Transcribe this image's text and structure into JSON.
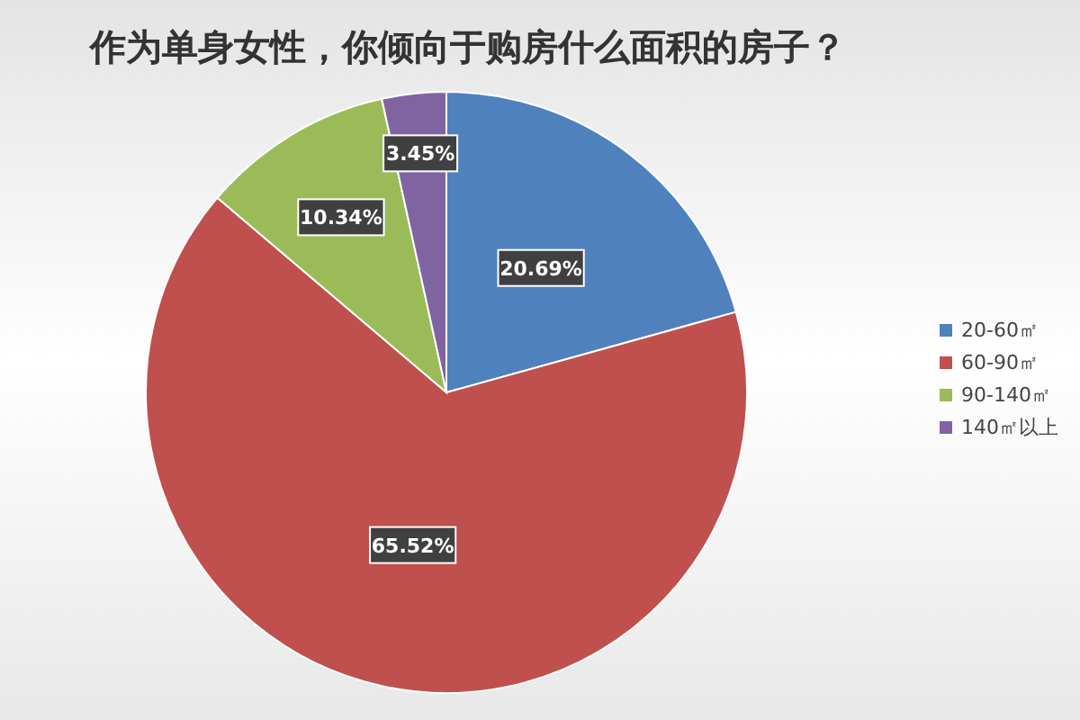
{
  "chart_data": {
    "type": "pie",
    "title": "作为单身女性，你倾向于购房什么面积的房子？",
    "categories": [
      "20-60㎡",
      "60-90㎡",
      "90-140㎡",
      "140㎡以上"
    ],
    "values": [
      20.69,
      65.52,
      10.34,
      3.45
    ],
    "colors": [
      "#4f81bd",
      "#c0504d",
      "#9bbb59",
      "#8064a2"
    ],
    "value_labels": [
      "20.69%",
      "65.52%",
      "10.34%",
      "3.45%"
    ],
    "legend": "right"
  }
}
